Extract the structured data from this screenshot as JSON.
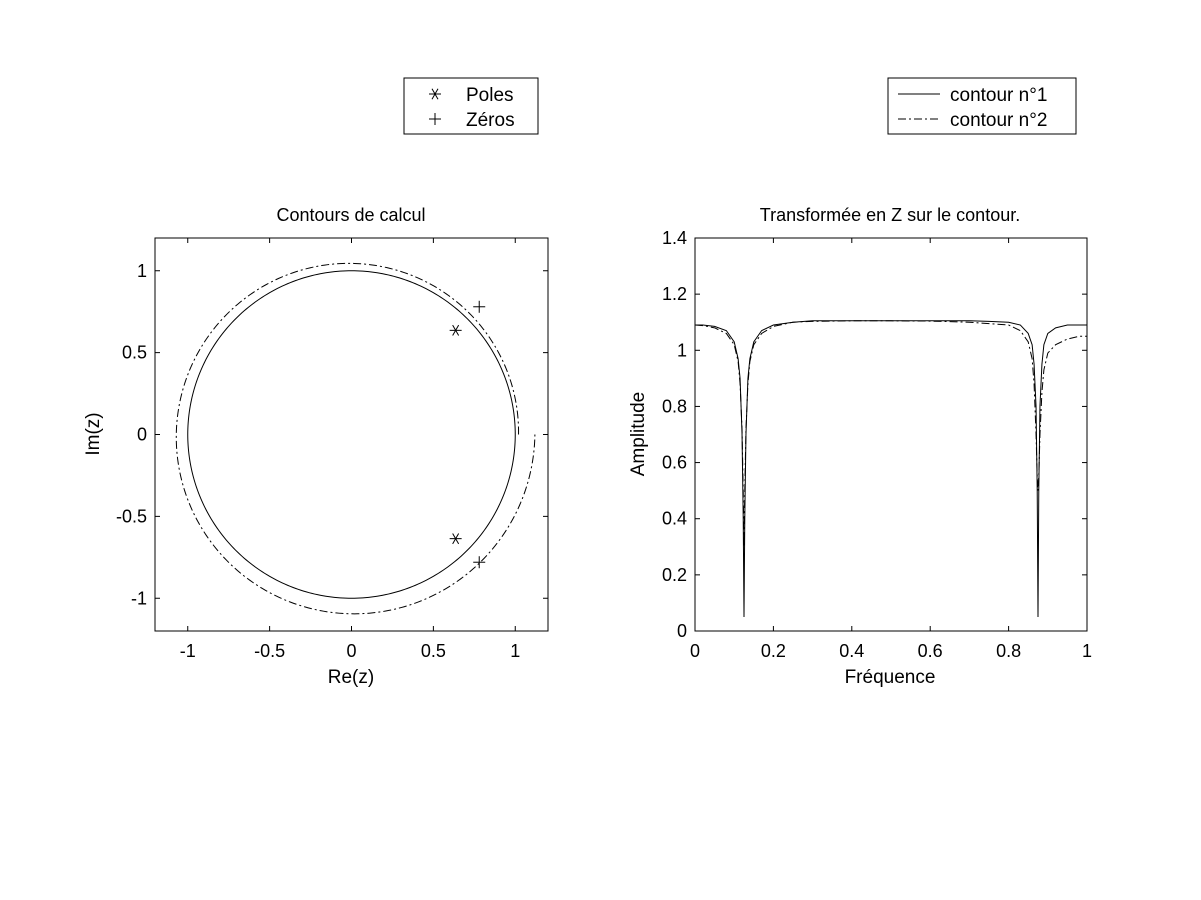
{
  "chart_data": [
    {
      "type": "scatter",
      "title": "Contours de calcul",
      "xlabel": "Re(z)",
      "ylabel": "Im(z)",
      "xlim": [
        -1.2,
        1.2
      ],
      "ylim": [
        -1.2,
        1.2
      ],
      "xticks": [
        -1,
        -0.5,
        0,
        0.5,
        1
      ],
      "yticks": [
        -1,
        -0.5,
        0,
        0.5,
        1
      ],
      "xtick_labels": [
        "-1",
        "-0.5",
        "0",
        "0.5",
        "1"
      ],
      "ytick_labels": [
        "-1",
        "-0.5",
        "0",
        "0.5",
        "1"
      ],
      "grid": false,
      "legend": [
        {
          "label": "Poles",
          "marker": "asterisk"
        },
        {
          "label": "Zéros",
          "marker": "plus"
        }
      ],
      "poles": [
        {
          "x": 0.636,
          "y": 0.636
        },
        {
          "x": 0.636,
          "y": -0.636
        }
      ],
      "zeros": [
        {
          "x": 0.78,
          "y": 0.78
        },
        {
          "x": 0.78,
          "y": -0.78
        }
      ],
      "contours": [
        {
          "style": "solid",
          "description": "unit circle",
          "radius": 1.0
        },
        {
          "style": "dashdot",
          "description": "spiral contour",
          "radius_start": 1.02,
          "radius_end": 1.12
        }
      ]
    },
    {
      "type": "line",
      "title": "Transformée en Z sur le contour.",
      "xlabel": "Fréquence",
      "ylabel": "Amplitude",
      "xlim": [
        0,
        1
      ],
      "ylim": [
        0,
        1.4
      ],
      "xticks": [
        0,
        0.2,
        0.4,
        0.6,
        0.8,
        1
      ],
      "yticks": [
        0,
        0.2,
        0.4,
        0.6,
        0.8,
        1,
        1.2,
        1.4
      ],
      "xtick_labels": [
        "0",
        "0.2",
        "0.4",
        "0.6",
        "0.8",
        "1"
      ],
      "ytick_labels": [
        "0",
        "0.2",
        "0.4",
        "0.6",
        "0.8",
        "1",
        "1.2",
        "1.4"
      ],
      "grid": false,
      "legend": [
        {
          "label": "contour n°1",
          "style": "solid"
        },
        {
          "label": "contour n°2",
          "style": "dashdot"
        }
      ],
      "x": [
        0,
        0.02,
        0.05,
        0.08,
        0.1,
        0.11,
        0.115,
        0.12,
        0.123,
        0.125,
        0.127,
        0.13,
        0.135,
        0.14,
        0.15,
        0.17,
        0.2,
        0.25,
        0.3,
        0.4,
        0.5,
        0.6,
        0.7,
        0.75,
        0.8,
        0.83,
        0.85,
        0.86,
        0.865,
        0.87,
        0.873,
        0.875,
        0.877,
        0.88,
        0.885,
        0.89,
        0.9,
        0.92,
        0.95,
        0.98,
        1
      ],
      "series": [
        {
          "name": "contour n°1",
          "values": [
            1.09,
            1.09,
            1.085,
            1.07,
            1.03,
            0.97,
            0.9,
            0.7,
            0.4,
            0.05,
            0.4,
            0.7,
            0.9,
            0.97,
            1.03,
            1.07,
            1.09,
            1.1,
            1.105,
            1.105,
            1.105,
            1.105,
            1.105,
            1.103,
            1.1,
            1.09,
            1.06,
            1.02,
            0.95,
            0.8,
            0.5,
            0.05,
            0.5,
            0.8,
            0.95,
            1.02,
            1.06,
            1.08,
            1.09,
            1.09,
            1.09
          ]
        },
        {
          "name": "contour n°2",
          "values": [
            1.09,
            1.088,
            1.08,
            1.06,
            1.02,
            0.96,
            0.88,
            0.72,
            0.5,
            0.3,
            0.5,
            0.72,
            0.88,
            0.96,
            1.02,
            1.06,
            1.085,
            1.1,
            1.103,
            1.105,
            1.105,
            1.104,
            1.1,
            1.095,
            1.09,
            1.07,
            1.03,
            0.97,
            0.88,
            0.7,
            0.55,
            0.5,
            0.55,
            0.7,
            0.85,
            0.93,
            0.99,
            1.02,
            1.04,
            1.05,
            1.05
          ]
        }
      ]
    }
  ]
}
